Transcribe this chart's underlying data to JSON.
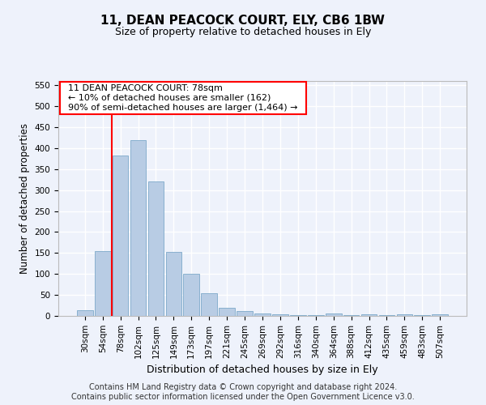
{
  "title": "11, DEAN PEACOCK COURT, ELY, CB6 1BW",
  "subtitle": "Size of property relative to detached houses in Ely",
  "xlabel": "Distribution of detached houses by size in Ely",
  "ylabel": "Number of detached properties",
  "footer_line1": "Contains HM Land Registry data © Crown copyright and database right 2024.",
  "footer_line2": "Contains public sector information licensed under the Open Government Licence v3.0.",
  "annotation_line1": "11 DEAN PEACOCK COURT: 78sqm",
  "annotation_line2": "← 10% of detached houses are smaller (162)",
  "annotation_line3": "90% of semi-detached houses are larger (1,464) →",
  "bar_color": "#b8cce4",
  "bar_edge_color": "#7da9c9",
  "reference_line_color": "red",
  "background_color": "#eef2fb",
  "grid_color": "#ffffff",
  "categories": [
    "30sqm",
    "54sqm",
    "78sqm",
    "102sqm",
    "125sqm",
    "149sqm",
    "173sqm",
    "197sqm",
    "221sqm",
    "245sqm",
    "269sqm",
    "292sqm",
    "316sqm",
    "340sqm",
    "364sqm",
    "388sqm",
    "412sqm",
    "435sqm",
    "459sqm",
    "483sqm",
    "507sqm"
  ],
  "values": [
    13,
    155,
    383,
    420,
    320,
    152,
    100,
    55,
    20,
    11,
    5,
    3,
    2,
    2,
    5,
    1,
    3,
    1,
    3,
    1,
    3
  ],
  "ylim": [
    0,
    560
  ],
  "yticks": [
    0,
    50,
    100,
    150,
    200,
    250,
    300,
    350,
    400,
    450,
    500,
    550
  ],
  "reference_bar_index": 2
}
